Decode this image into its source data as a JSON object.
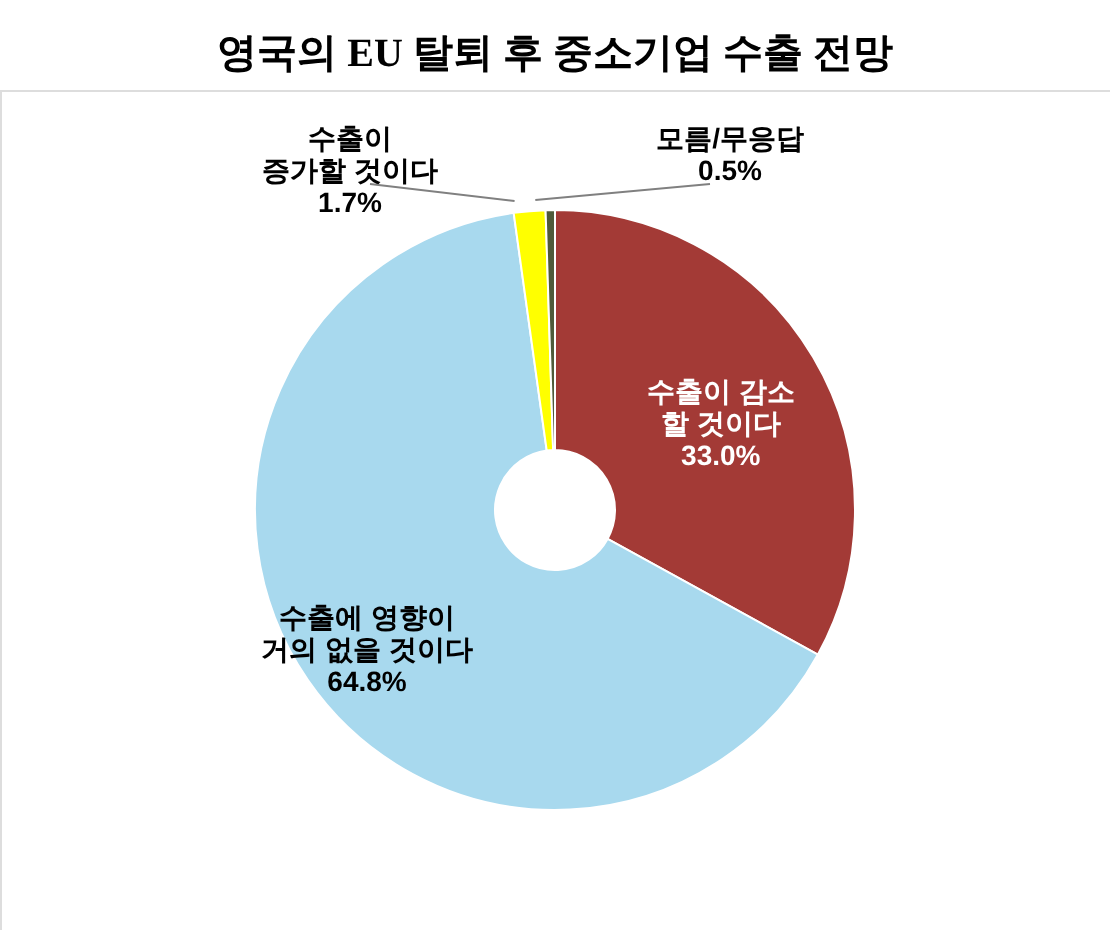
{
  "chart_data": {
    "type": "donut",
    "title": "영국의 EU 탈퇴 후 중소기업 수출 전망",
    "categories": [
      "수출이 감소\n할 것이다",
      "수출에 영향이\n거의 없을 것이다",
      "수출이\n증가할 것이다",
      "모름/무응답"
    ],
    "values": [
      33.0,
      64.8,
      1.7,
      0.5
    ],
    "colors": [
      "#a33a36",
      "#a8d9ee",
      "#ffff00",
      "#4f5a3a"
    ],
    "value_labels": [
      "33.0%",
      "64.8%",
      "1.7%",
      "0.5%"
    ],
    "legend": false
  }
}
